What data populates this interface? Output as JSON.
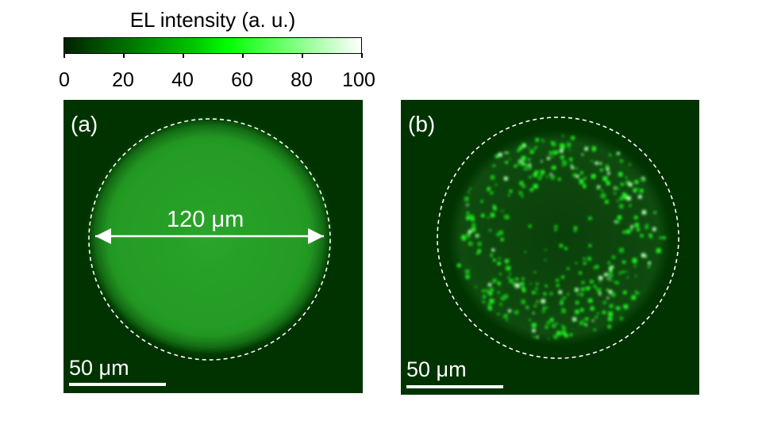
{
  "colorbar": {
    "title": "EL intensity (a. u.)",
    "ticks": [
      "0",
      "20",
      "40",
      "60",
      "80",
      "100"
    ],
    "colors": [
      "#002200",
      "#00cc00",
      "#00ff00",
      "#ffffff"
    ]
  },
  "panels": [
    {
      "label": "(a)",
      "scale_label": "50 μm",
      "dimension_label": "120 μm"
    },
    {
      "label": "(b)",
      "scale_label": "50 μm"
    }
  ],
  "colors": {
    "background": "#003300",
    "emission": "#00ff00",
    "annotation": "#ffffff"
  }
}
